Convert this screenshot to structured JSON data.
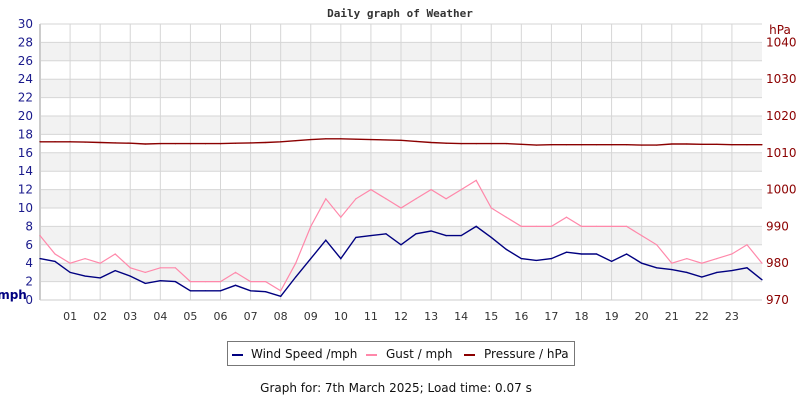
{
  "chart_data": {
    "type": "line",
    "title": "Daily graph of Weather",
    "ylabel_left": "mph",
    "ylabel_right": "hPa",
    "x_tick_labels": [
      "01",
      "02",
      "03",
      "04",
      "05",
      "06",
      "07",
      "08",
      "09",
      "10",
      "11",
      "12",
      "13",
      "14",
      "15",
      "16",
      "17",
      "18",
      "19",
      "20",
      "21",
      "22",
      "23"
    ],
    "xlim": [
      0,
      24
    ],
    "ylim_left": [
      0,
      30
    ],
    "ylim_right": [
      970,
      1045
    ],
    "left_ticks": [
      0,
      2,
      4,
      6,
      8,
      10,
      12,
      14,
      16,
      18,
      20,
      22,
      24,
      26,
      28,
      30
    ],
    "right_ticks": [
      970,
      980,
      990,
      1000,
      1010,
      1020,
      1030,
      1040
    ],
    "grid": true,
    "legend_position": "bottom",
    "x": [
      0,
      0.5,
      1,
      1.5,
      2,
      2.5,
      3,
      3.5,
      4,
      4.5,
      5,
      5.5,
      6,
      6.5,
      7,
      7.5,
      8,
      8.5,
      9,
      9.5,
      10,
      10.5,
      11,
      11.5,
      12,
      12.5,
      13,
      13.5,
      14,
      14.5,
      15,
      15.5,
      16,
      16.5,
      17,
      17.5,
      18,
      18.5,
      19,
      19.5,
      20,
      20.5,
      21,
      21.5,
      22,
      22.5,
      23,
      23.5,
      24
    ],
    "series": [
      {
        "name": "Wind Speed /mph",
        "axis": "left",
        "color": "#000080",
        "values": [
          4.5,
          4.2,
          3.0,
          2.6,
          2.4,
          3.2,
          2.6,
          1.8,
          2.1,
          2.0,
          1.0,
          1.0,
          1.0,
          1.6,
          1.0,
          0.9,
          0.4,
          2.5,
          4.5,
          6.5,
          4.5,
          6.8,
          7.0,
          7.2,
          6.0,
          7.2,
          7.5,
          7.0,
          7.0,
          8.0,
          6.8,
          5.5,
          4.5,
          4.3,
          4.5,
          5.2,
          5.0,
          5.0,
          4.2,
          5.0,
          4.0,
          3.5,
          3.3,
          3.0,
          2.5,
          3.0,
          3.2,
          3.5,
          2.2
        ]
      },
      {
        "name": "Gust / mph",
        "axis": "left",
        "color": "#ff88aa",
        "values": [
          7,
          5,
          4,
          4.5,
          4,
          5,
          3.5,
          3,
          3.5,
          3.5,
          2,
          2,
          2,
          3,
          2,
          2,
          1,
          4,
          8,
          11,
          9,
          11,
          12,
          11,
          10,
          11,
          12,
          11,
          12,
          13,
          10,
          9,
          8,
          8,
          8,
          9,
          8,
          8,
          8,
          8,
          7,
          6,
          4,
          4.5,
          4,
          4.5,
          5,
          6,
          4
        ]
      },
      {
        "name": "Pressure / hPa",
        "axis": "right",
        "color": "#8b0000",
        "values": [
          1013,
          1013,
          1013,
          1012.9,
          1012.8,
          1012.7,
          1012.6,
          1012.4,
          1012.5,
          1012.5,
          1012.5,
          1012.5,
          1012.5,
          1012.6,
          1012.7,
          1012.8,
          1013,
          1013.3,
          1013.6,
          1013.8,
          1013.8,
          1013.7,
          1013.6,
          1013.5,
          1013.4,
          1013.1,
          1012.8,
          1012.6,
          1012.5,
          1012.5,
          1012.5,
          1012.5,
          1012.3,
          1012.1,
          1012.2,
          1012.2,
          1012.2,
          1012.2,
          1012.2,
          1012.2,
          1012.1,
          1012.1,
          1012.4,
          1012.4,
          1012.3,
          1012.3,
          1012.2,
          1012.2,
          1012.2
        ]
      }
    ]
  },
  "legend": {
    "items": [
      "Wind Speed /mph",
      "Gust / mph",
      "Pressure / hPa"
    ]
  },
  "footer": "Graph for: 7th March 2025; Load time: 0.07 s"
}
